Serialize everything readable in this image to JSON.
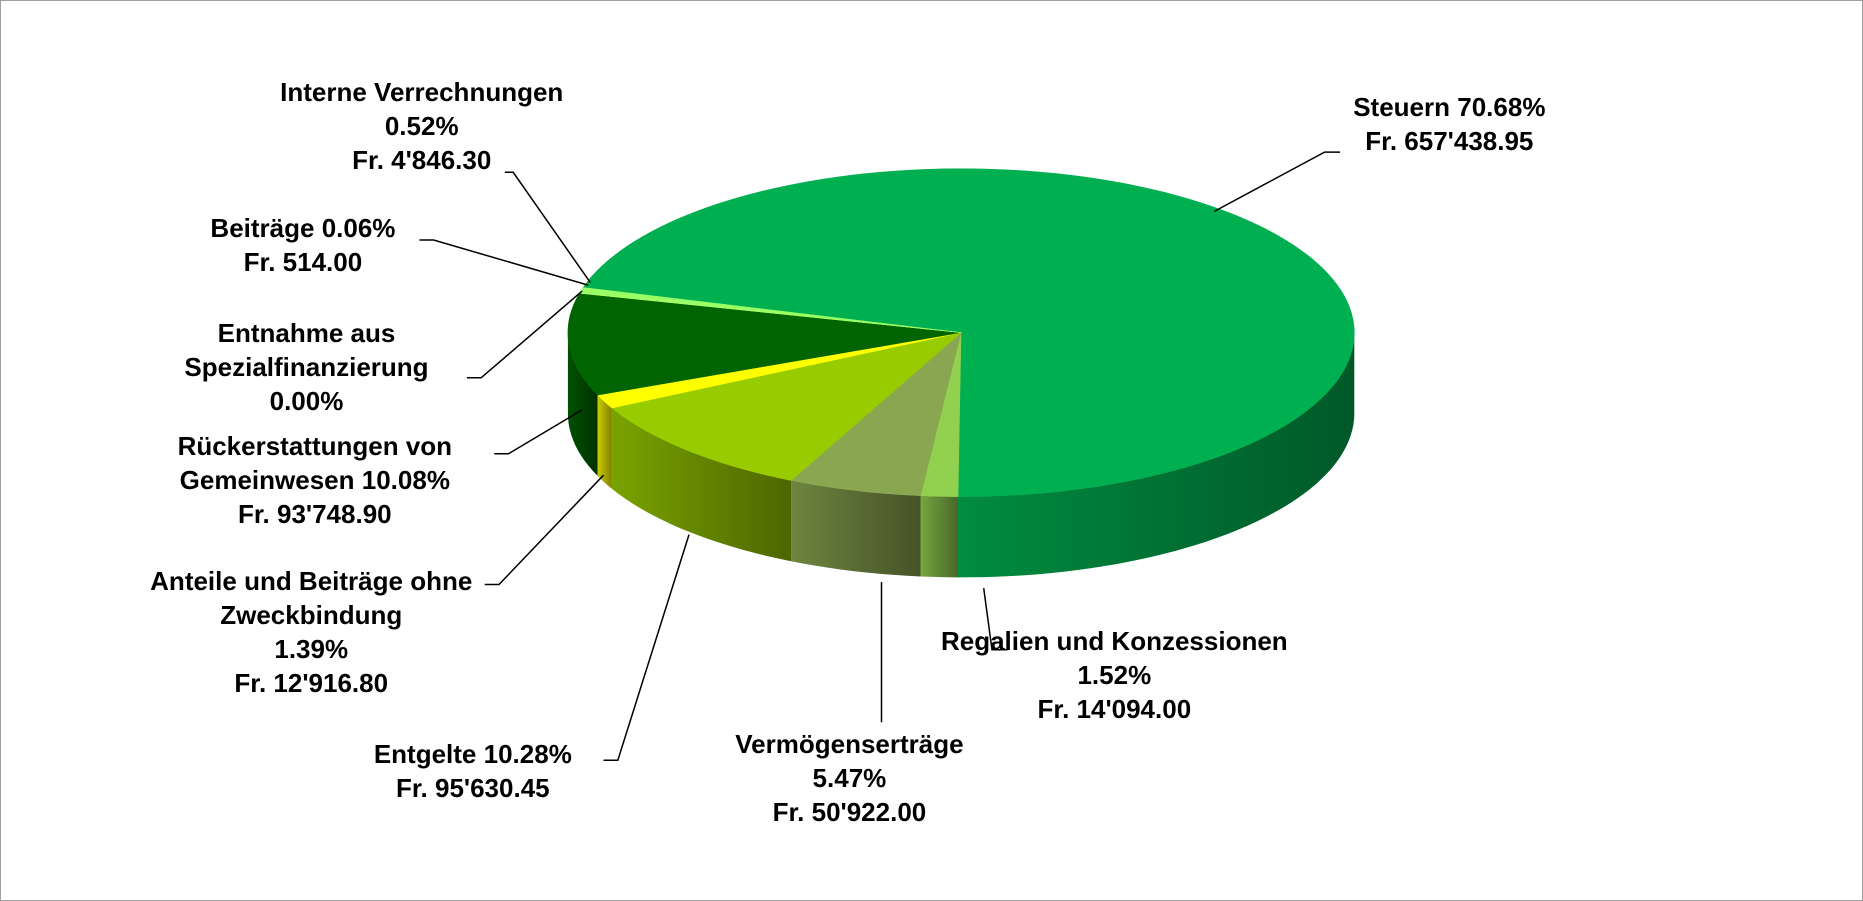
{
  "chart_data": {
    "type": "pie3d",
    "categories": [
      "Steuern",
      "Regalien und Konzessionen",
      "Vermögenserträge",
      "Entgelte",
      "Anteile und Beiträge ohne Zweckbindung",
      "Rückerstattungen von Gemeinwesen",
      "Entnahme aus Spezialfinanzierung",
      "Beiträge",
      "Interne Verrechnungen"
    ],
    "values": [
      70.68,
      1.52,
      5.47,
      10.28,
      1.39,
      10.08,
      0.0,
      0.06,
      0.52
    ],
    "value_labels": [
      "70.68%",
      "1.52%",
      "5.47%",
      "10.28%",
      "1.39%",
      "10.08%",
      "0.00%",
      "0.06%",
      "0.52%"
    ],
    "amounts": [
      657438.95,
      14094.0,
      50922.0,
      95630.45,
      12916.8,
      93748.9,
      null,
      514.0,
      4846.3
    ],
    "amount_labels": [
      "Fr. 657'438.95",
      "Fr. 14'094.00",
      "Fr. 50'922.00",
      "Fr. 95'630.45",
      "Fr. 12'916.80",
      "Fr. 93'748.90",
      null,
      "Fr. 514.00",
      "Fr. 4'846.30"
    ],
    "colors": [
      "#00b050",
      "#92d050",
      "#8aa650",
      "#99cc00",
      "#ffff00",
      "#006400",
      "#33cc33",
      "#ccff66",
      "#99ff66"
    ]
  }
}
